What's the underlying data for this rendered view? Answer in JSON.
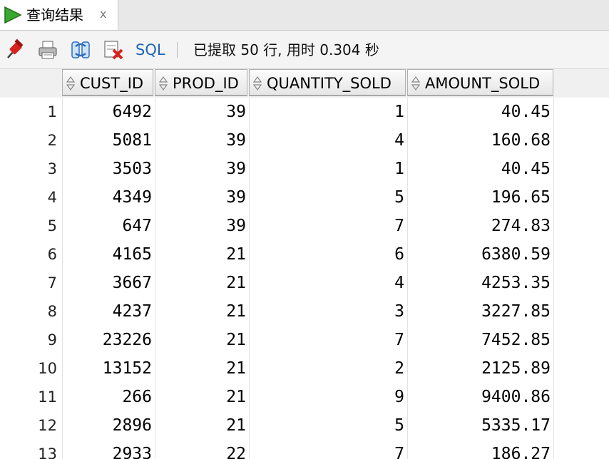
{
  "tab": {
    "title": "查询结果",
    "close": "x"
  },
  "toolbar": {
    "icons": [
      "pin-icon",
      "print-icon",
      "refresh-icon",
      "delete-icon"
    ],
    "sql_label": "SQL",
    "status": "已提取 50 行, 用时 0.304 秒"
  },
  "grid": {
    "columns": [
      "CUST_ID",
      "PROD_ID",
      "QUANTITY_SOLD",
      "AMOUNT_SOLD"
    ],
    "rows": [
      {
        "n": "1",
        "c": [
          "6492",
          "39",
          "1",
          "40.45"
        ]
      },
      {
        "n": "2",
        "c": [
          "5081",
          "39",
          "4",
          "160.68"
        ]
      },
      {
        "n": "3",
        "c": [
          "3503",
          "39",
          "1",
          "40.45"
        ]
      },
      {
        "n": "4",
        "c": [
          "4349",
          "39",
          "5",
          "196.65"
        ]
      },
      {
        "n": "5",
        "c": [
          "647",
          "39",
          "7",
          "274.83"
        ]
      },
      {
        "n": "6",
        "c": [
          "4165",
          "21",
          "6",
          "6380.59"
        ]
      },
      {
        "n": "7",
        "c": [
          "3667",
          "21",
          "4",
          "4253.35"
        ]
      },
      {
        "n": "8",
        "c": [
          "4237",
          "21",
          "3",
          "3227.85"
        ]
      },
      {
        "n": "9",
        "c": [
          "23226",
          "21",
          "7",
          "7452.85"
        ]
      },
      {
        "n": "10",
        "c": [
          "13152",
          "21",
          "2",
          "2125.89"
        ]
      },
      {
        "n": "11",
        "c": [
          "266",
          "21",
          "9",
          "9400.86"
        ]
      },
      {
        "n": "12",
        "c": [
          "2896",
          "21",
          "5",
          "5335.17"
        ]
      },
      {
        "n": "13",
        "c": [
          "2933",
          "22",
          "7",
          "186.27"
        ]
      }
    ]
  },
  "colors": {
    "sql_link": "#1f63b9",
    "run_icon": "#3aa830"
  }
}
